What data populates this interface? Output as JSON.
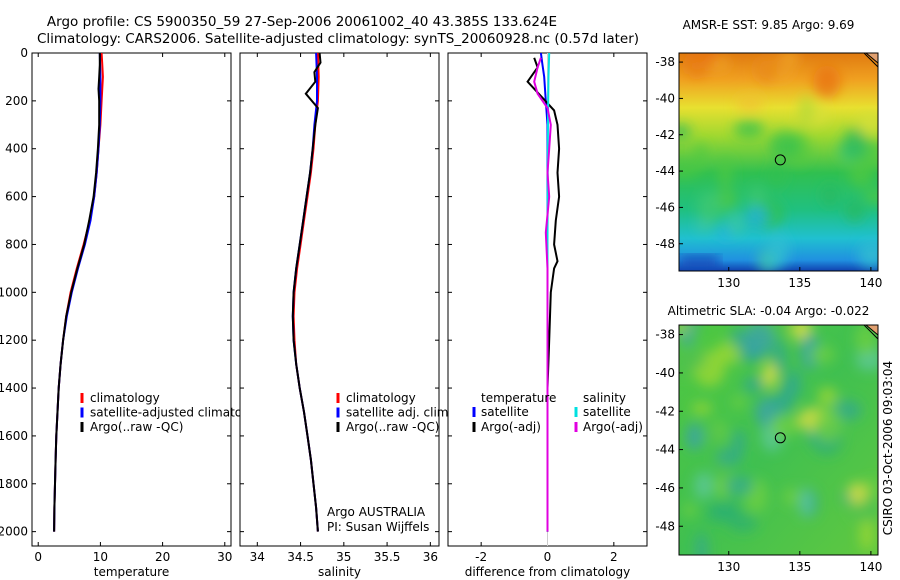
{
  "header": {
    "title_line1": "Argo profile: CS 5900350_59 27-Sep-2006 20061002_40 43.385S 133.624E",
    "title_line2": "Climatology: CARS2006. Satellite-adjusted climatology: synTS_20060928.nc (0.57d later)"
  },
  "credit": "CSIRO 03-Oct-2006 09:03:04",
  "chart_data": [
    {
      "id": "temperature",
      "type": "line",
      "title": "",
      "xlabel": "temperature",
      "ylabel": "",
      "xlim": [
        -1,
        31
      ],
      "ylim": [
        2060,
        0
      ],
      "xticks": [
        0,
        10,
        20,
        30
      ],
      "yticks": [
        0,
        200,
        400,
        600,
        800,
        1000,
        1200,
        1400,
        1600,
        1800,
        2000
      ],
      "legend": {
        "placement": "lower-middle",
        "entries": [
          "climatology",
          "satellite-adjusted climatology",
          "Argo(..raw -QC)"
        ]
      },
      "series": [
        {
          "name": "climatology",
          "color": "#ff0000",
          "points": [
            [
              10.2,
              0
            ],
            [
              10.3,
              50
            ],
            [
              10.4,
              100
            ],
            [
              10.2,
              200
            ],
            [
              10.0,
              300
            ],
            [
              9.7,
              400
            ],
            [
              9.4,
              500
            ],
            [
              9.0,
              600
            ],
            [
              8.3,
              700
            ],
            [
              7.3,
              800
            ],
            [
              6.2,
              900
            ],
            [
              5.2,
              1000
            ],
            [
              4.5,
              1100
            ],
            [
              4.0,
              1200
            ],
            [
              3.6,
              1300
            ],
            [
              3.3,
              1400
            ],
            [
              3.1,
              1500
            ],
            [
              2.9,
              1600
            ],
            [
              2.8,
              1700
            ],
            [
              2.7,
              1800
            ],
            [
              2.6,
              1900
            ],
            [
              2.55,
              2000
            ]
          ]
        },
        {
          "name": "satellite-adjusted climatology",
          "color": "#0000ff",
          "points": [
            [
              9.9,
              0
            ],
            [
              9.95,
              50
            ],
            [
              10.0,
              100
            ],
            [
              10.0,
              200
            ],
            [
              9.9,
              300
            ],
            [
              9.7,
              400
            ],
            [
              9.4,
              500
            ],
            [
              9.0,
              600
            ],
            [
              8.4,
              700
            ],
            [
              7.5,
              800
            ],
            [
              6.4,
              900
            ],
            [
              5.4,
              1000
            ],
            [
              4.6,
              1100
            ],
            [
              4.0,
              1200
            ],
            [
              3.6,
              1300
            ],
            [
              3.3,
              1400
            ],
            [
              3.1,
              1500
            ],
            [
              2.9,
              1600
            ],
            [
              2.8,
              1700
            ],
            [
              2.7,
              1800
            ],
            [
              2.6,
              1900
            ],
            [
              2.55,
              2000
            ]
          ]
        },
        {
          "name": "Argo(..raw -QC)",
          "color": "#000000",
          "points": [
            [
              9.9,
              0
            ],
            [
              9.9,
              50
            ],
            [
              9.8,
              100
            ],
            [
              9.7,
              150
            ],
            [
              9.8,
              200
            ],
            [
              9.8,
              300
            ],
            [
              9.6,
              400
            ],
            [
              9.3,
              500
            ],
            [
              8.9,
              600
            ],
            [
              8.2,
              700
            ],
            [
              7.4,
              800
            ],
            [
              6.3,
              900
            ],
            [
              5.3,
              1000
            ],
            [
              4.5,
              1100
            ],
            [
              4.0,
              1200
            ],
            [
              3.6,
              1300
            ],
            [
              3.3,
              1400
            ],
            [
              3.1,
              1500
            ],
            [
              2.9,
              1600
            ],
            [
              2.8,
              1700
            ],
            [
              2.7,
              1800
            ],
            [
              2.6,
              1900
            ],
            [
              2.55,
              2000
            ]
          ]
        }
      ]
    },
    {
      "id": "salinity",
      "type": "line",
      "title": "",
      "xlabel": "salinity",
      "ylabel": "",
      "xlim": [
        33.8,
        36.1
      ],
      "ylim": [
        2060,
        0
      ],
      "xticks": [
        34,
        34.5,
        35,
        35.5,
        36
      ],
      "yticks": [
        0,
        200,
        400,
        600,
        800,
        1000,
        1200,
        1400,
        1600,
        1800,
        2000
      ],
      "legend": {
        "placement": "lower-middle",
        "entries": [
          "climatology",
          "satellite adj. clim.",
          "Argo(..raw -QC)"
        ]
      },
      "annotation": {
        "line1": "Argo AUSTRALIA",
        "line2": "PI: Susan Wijffels"
      },
      "series": [
        {
          "name": "climatology",
          "color": "#ff0000",
          "points": [
            [
              34.7,
              0
            ],
            [
              34.71,
              100
            ],
            [
              34.7,
              200
            ],
            [
              34.67,
              300
            ],
            [
              34.65,
              400
            ],
            [
              34.62,
              500
            ],
            [
              34.58,
              600
            ],
            [
              34.54,
              700
            ],
            [
              34.5,
              800
            ],
            [
              34.46,
              900
            ],
            [
              34.43,
              1000
            ],
            [
              34.42,
              1100
            ],
            [
              34.43,
              1200
            ],
            [
              34.45,
              1300
            ],
            [
              34.49,
              1400
            ],
            [
              34.54,
              1500
            ],
            [
              34.58,
              1600
            ],
            [
              34.62,
              1700
            ],
            [
              34.65,
              1800
            ],
            [
              34.68,
              1900
            ],
            [
              34.7,
              2000
            ]
          ]
        },
        {
          "name": "satellite adj. clim.",
          "color": "#0000ff",
          "points": [
            [
              34.68,
              0
            ],
            [
              34.69,
              100
            ],
            [
              34.69,
              200
            ],
            [
              34.66,
              300
            ],
            [
              34.64,
              400
            ],
            [
              34.61,
              500
            ],
            [
              34.57,
              600
            ],
            [
              34.53,
              700
            ],
            [
              34.49,
              800
            ],
            [
              34.45,
              900
            ],
            [
              34.42,
              1000
            ],
            [
              34.41,
              1100
            ],
            [
              34.42,
              1200
            ],
            [
              34.45,
              1300
            ],
            [
              34.49,
              1400
            ],
            [
              34.54,
              1500
            ],
            [
              34.58,
              1600
            ],
            [
              34.62,
              1700
            ],
            [
              34.65,
              1800
            ],
            [
              34.68,
              1900
            ],
            [
              34.7,
              2000
            ]
          ]
        },
        {
          "name": "Argo(..raw -QC)",
          "color": "#000000",
          "points": [
            [
              34.72,
              0
            ],
            [
              34.73,
              40
            ],
            [
              34.66,
              80
            ],
            [
              34.67,
              120
            ],
            [
              34.56,
              170
            ],
            [
              34.7,
              230
            ],
            [
              34.67,
              300
            ],
            [
              34.64,
              400
            ],
            [
              34.61,
              500
            ],
            [
              34.57,
              600
            ],
            [
              34.53,
              700
            ],
            [
              34.49,
              800
            ],
            [
              34.45,
              900
            ],
            [
              34.42,
              1000
            ],
            [
              34.41,
              1100
            ],
            [
              34.42,
              1200
            ],
            [
              34.45,
              1300
            ],
            [
              34.49,
              1400
            ],
            [
              34.54,
              1500
            ],
            [
              34.58,
              1600
            ],
            [
              34.62,
              1700
            ],
            [
              34.65,
              1800
            ],
            [
              34.68,
              1900
            ],
            [
              34.7,
              2000
            ]
          ]
        }
      ]
    },
    {
      "id": "difference",
      "type": "line",
      "title": "",
      "xlabel": "difference from climatology",
      "ylabel": "",
      "xlim": [
        -3,
        3
      ],
      "ylim": [
        2060,
        0
      ],
      "xticks": [
        -2,
        0,
        2
      ],
      "yticks": [
        0,
        200,
        400,
        600,
        800,
        1000,
        1200,
        1400,
        1600,
        1800,
        2000
      ],
      "legend": {
        "placement": "lower-middle",
        "temperature_heading": "temperature",
        "salinity_heading": "salinity",
        "entries": [
          "satellite",
          "Argo(-adj)",
          "satellite",
          "Argo(-adj)"
        ]
      },
      "series": [
        {
          "name": "temperature satellite",
          "color": "#0000ff",
          "points": [
            [
              -0.2,
              0
            ],
            [
              -0.15,
              50
            ],
            [
              -0.1,
              100
            ],
            [
              -0.05,
              200
            ],
            [
              0,
              300
            ],
            [
              0,
              400
            ],
            [
              0,
              600
            ],
            [
              0,
              1000
            ],
            [
              0,
              1500
            ],
            [
              0,
              2000
            ]
          ]
        },
        {
          "name": "temperature Argo(-adj)",
          "color": "#000000",
          "points": [
            [
              -0.4,
              20
            ],
            [
              -0.3,
              60
            ],
            [
              -0.6,
              120
            ],
            [
              -0.2,
              180
            ],
            [
              0.2,
              240
            ],
            [
              0.3,
              300
            ],
            [
              0.35,
              400
            ],
            [
              0.3,
              500
            ],
            [
              0.35,
              600
            ],
            [
              0.25,
              700
            ],
            [
              0.2,
              800
            ],
            [
              0.3,
              870
            ],
            [
              0.2,
              900
            ],
            [
              0.1,
              1000
            ],
            [
              0.05,
              1200
            ],
            [
              0,
              1400
            ],
            [
              0,
              2000
            ]
          ]
        },
        {
          "name": "salinity satellite",
          "color": "#00e0e0",
          "points": [
            [
              0.05,
              0
            ],
            [
              0.03,
              100
            ],
            [
              0.02,
              200
            ],
            [
              0.01,
              400
            ],
            [
              0,
              800
            ],
            [
              0,
              1200
            ],
            [
              0,
              2000
            ]
          ]
        },
        {
          "name": "salinity Argo(-adj)",
          "color": "#e000e0",
          "points": [
            [
              -0.2,
              20
            ],
            [
              -0.3,
              60
            ],
            [
              -0.4,
              120
            ],
            [
              -0.3,
              170
            ],
            [
              0,
              230
            ],
            [
              0.1,
              300
            ],
            [
              0.05,
              400
            ],
            [
              0,
              500
            ],
            [
              0.05,
              600
            ],
            [
              -0.05,
              750
            ],
            [
              0,
              900
            ],
            [
              0,
              2000
            ]
          ]
        }
      ]
    }
  ],
  "maps": [
    {
      "id": "sst-map",
      "title": "AMSR-E SST: 9.85 Argo: 9.69",
      "xticks": [
        130,
        135,
        140
      ],
      "yticks": [
        -38,
        -40,
        -42,
        -44,
        -46,
        -48
      ],
      "xlim": [
        126.5,
        140.5
      ],
      "ylim": [
        -49.5,
        -37.5
      ],
      "marker": {
        "lon": 133.624,
        "lat": -43.385
      }
    },
    {
      "id": "sla-map",
      "title": "Altimetric SLA: -0.04 Argo: -0.022",
      "xticks": [
        130,
        135,
        140
      ],
      "yticks": [
        -38,
        -40,
        -42,
        -44,
        -46,
        -48
      ],
      "xlim": [
        126.5,
        140.5
      ],
      "ylim": [
        -49.5,
        -37.5
      ],
      "marker": {
        "lon": 133.624,
        "lat": -43.385
      }
    }
  ]
}
